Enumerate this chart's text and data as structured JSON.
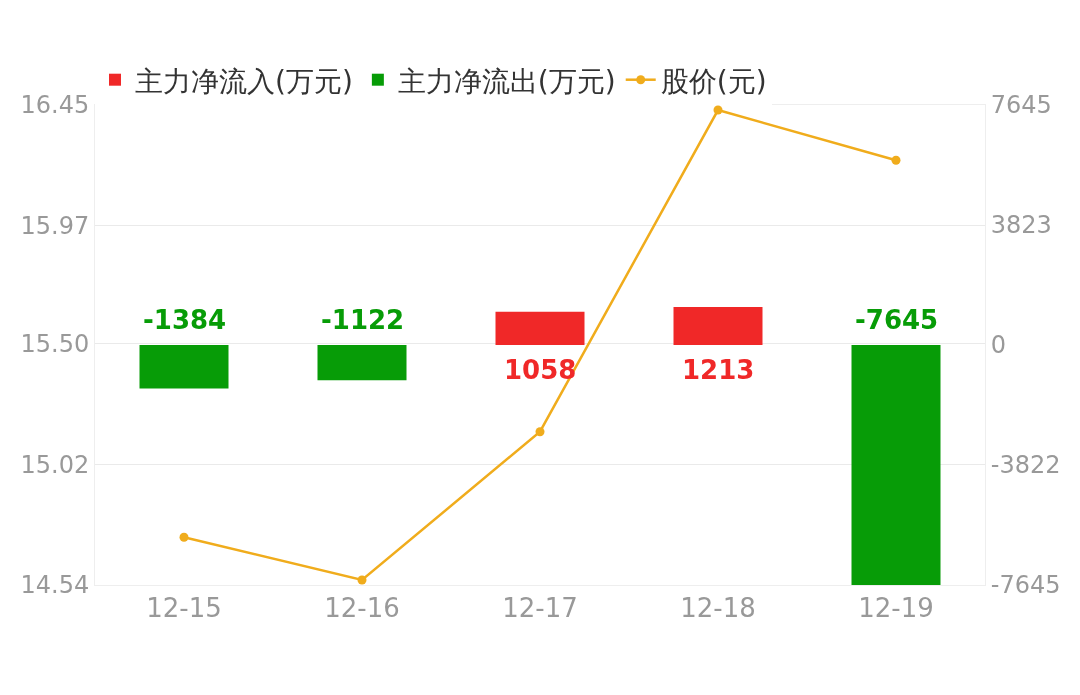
{
  "chart_data": {
    "type": "bar",
    "categories": [
      "12-15",
      "12-16",
      "12-17",
      "12-18",
      "12-19"
    ],
    "series": [
      {
        "name": "主力净流入(万元)",
        "color": "#f02828",
        "axis": "y2",
        "values": [
          null,
          null,
          1058,
          1213,
          null
        ],
        "value_labels": [
          null,
          null,
          "1058",
          "1213",
          null
        ]
      },
      {
        "name": "主力净流出(万元)",
        "color": "#079c07",
        "axis": "y2",
        "values": [
          -1384,
          -1122,
          null,
          null,
          -7645
        ],
        "value_labels": [
          "-1384",
          "-1122",
          null,
          null,
          "-7645"
        ]
      },
      {
        "name": "股价(元)",
        "color": "#f0ac1c",
        "type": "line",
        "marker": "circle",
        "values": [
          14.73,
          14.56,
          15.15,
          16.43,
          16.23
        ]
      }
    ],
    "ylim": [
      14.54,
      16.45
    ],
    "yticks": [
      14.54,
      15.02,
      {
        "value": 15.5,
        "label": "15.50"
      },
      15.97,
      16.45
    ],
    "y2lim": [
      -7645,
      7645
    ],
    "y2ticks": [
      -7645,
      -3822,
      0,
      3823,
      7645
    ],
    "grid": true,
    "legend": "top"
  }
}
